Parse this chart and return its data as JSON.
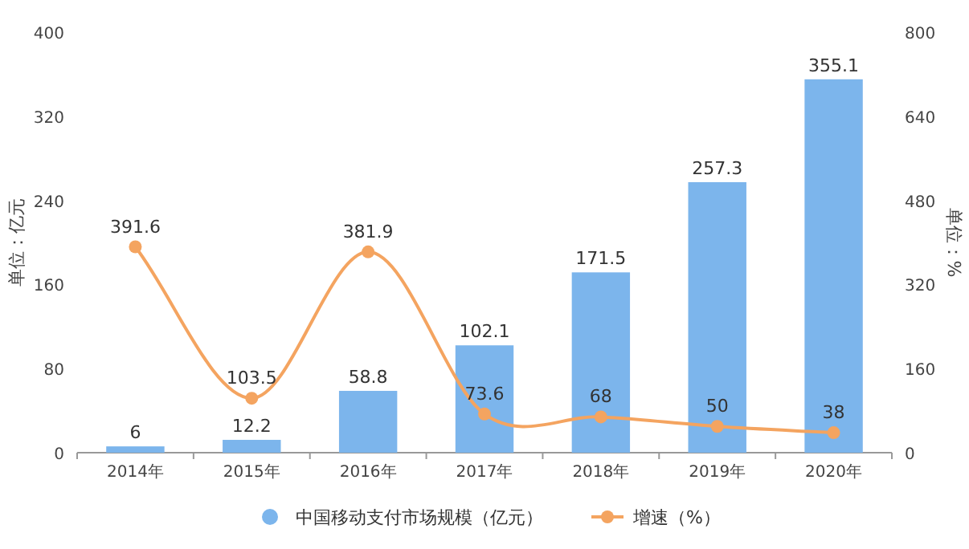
{
  "chart_data": {
    "type": "bar",
    "categories": [
      "2014年",
      "2015年",
      "2016年",
      "2017年",
      "2018年",
      "2019年",
      "2020年"
    ],
    "series": [
      {
        "name": "中国移动支付市场规模（亿元）",
        "color": "#7cb5ec",
        "values": [
          6,
          12.2,
          58.8,
          102.1,
          171.5,
          257.3,
          355.1
        ]
      },
      {
        "name": "增速（%）",
        "type": "line",
        "axis": "y2",
        "marker": "circle",
        "color": "#f4a460",
        "values": [
          391.6,
          103.5,
          381.9,
          73.6,
          68,
          50,
          38
        ]
      }
    ],
    "ylabel": "单位：亿元",
    "y2label": "单位：%",
    "ylim": [
      0,
      400
    ],
    "yticks": [
      0,
      80,
      160,
      240,
      320,
      400
    ],
    "y2lim": [
      0,
      800
    ],
    "y2ticks": [
      0,
      160,
      320,
      480,
      640,
      800
    ],
    "legend": "bottom",
    "data_labels": true
  }
}
